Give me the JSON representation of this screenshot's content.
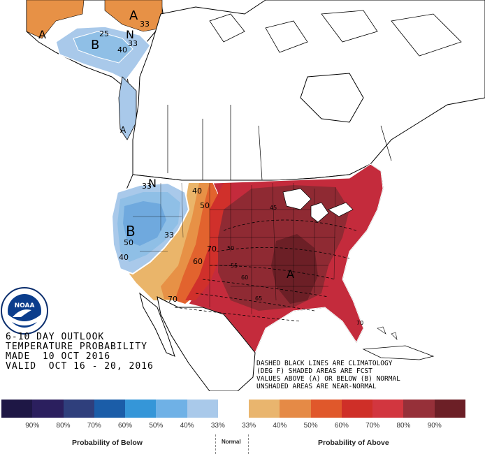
{
  "map": {
    "labels": {
      "b_alaska": "B",
      "a_alaska_north": "A",
      "a_alaska_west": "A",
      "n_alaska": "N",
      "n_west": "N",
      "b_west": "B",
      "a_central": "A",
      "a_panhandle": "A"
    },
    "contour_labels": [
      "33",
      "25",
      "40",
      "33",
      "33",
      "40",
      "50",
      "33",
      "50",
      "40",
      "70",
      "60",
      "70",
      "50",
      "55",
      "60",
      "65",
      "45"
    ],
    "climatology_labels": [
      "45",
      "50",
      "55",
      "60",
      "65",
      "70"
    ],
    "colors": {
      "below_33": "#a9c9ea",
      "below_40": "#8fbfe6",
      "below_50": "#6fa9de",
      "above_33": "#eab56a",
      "above_40": "#e79146",
      "above_50": "#e2632e",
      "above_60": "#d0302b",
      "above_70": "#c42b3c",
      "above_80": "#8f2a33",
      "above_90": "#6c1f26"
    }
  },
  "title": {
    "line1": "6-10 DAY OUTLOOK",
    "line2": "TEMPERATURE PROBABILITY",
    "line3": "MADE  10 OCT 2016",
    "line4": "VALID  OCT 16 - 20, 2016"
  },
  "notes": {
    "line1": "DASHED BLACK LINES ARE CLIMATOLOGY",
    "line2": "(DEG F) SHADED AREAS ARE FCST",
    "line3": "VALUES ABOVE (A) OR BELOW (B) NORMAL",
    "line4": "UNSHADED AREAS ARE NEAR-NORMAL"
  },
  "logo": {
    "icon": "noaa-logo",
    "text": "NOAA"
  },
  "legend": {
    "swatches": [
      {
        "color": "#1e1745"
      },
      {
        "color": "#2b1f5e"
      },
      {
        "color": "#2f3f7c"
      },
      {
        "color": "#1b5da8"
      },
      {
        "color": "#3596d8"
      },
      {
        "color": "#6fb1e6"
      },
      {
        "color": "#a9c9ea"
      },
      {
        "color": "#ffffff"
      },
      {
        "color": "#e9b56e"
      },
      {
        "color": "#e58a46"
      },
      {
        "color": "#e0582b"
      },
      {
        "color": "#cf2f28"
      },
      {
        "color": "#d2363f"
      },
      {
        "color": "#963039"
      },
      {
        "color": "#6c1f26"
      }
    ],
    "ticks": [
      "90%",
      "80%",
      "70%",
      "60%",
      "50%",
      "40%",
      "33%",
      "33%",
      "40%",
      "50%",
      "60%",
      "70%",
      "80%",
      "90%"
    ],
    "below_caption": "Probability of Below",
    "normal_caption": "Normal",
    "above_caption": "Probability of Above"
  }
}
